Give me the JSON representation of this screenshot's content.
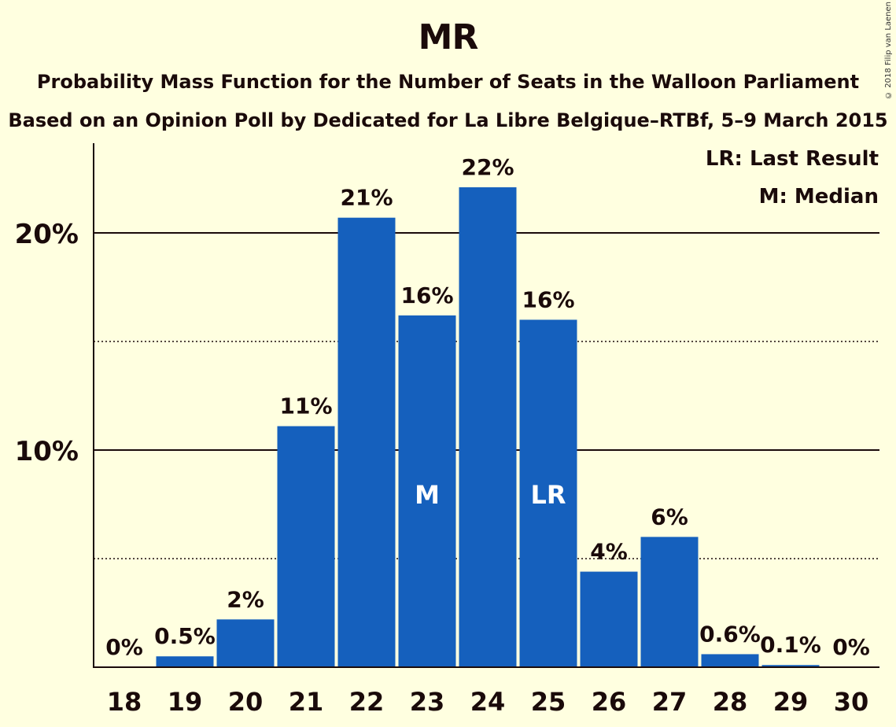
{
  "chart_data": {
    "type": "bar",
    "title": "MR",
    "subtitle": "Probability Mass Function for the Number of Seats in the Walloon Parliament",
    "subtitle2": "Based on an Opinion Poll by Dedicated for La Libre Belgique–RTBf, 5–9 March 2015",
    "categories": [
      "18",
      "19",
      "20",
      "21",
      "22",
      "23",
      "24",
      "25",
      "26",
      "27",
      "28",
      "29",
      "30"
    ],
    "values": [
      0,
      0.5,
      2.2,
      11.1,
      20.7,
      16.2,
      22.1,
      16.0,
      4.4,
      6.0,
      0.6,
      0.1,
      0
    ],
    "value_labels": [
      "0%",
      "0.5%",
      "2%",
      "11%",
      "21%",
      "16%",
      "22%",
      "16%",
      "4%",
      "6%",
      "0.6%",
      "0.1%",
      "0%"
    ],
    "ylim": [
      0,
      24
    ],
    "ytick_labels": [
      {
        "value": 10,
        "label": "10%"
      },
      {
        "value": 20,
        "label": "20%"
      }
    ],
    "minor_gridlines": [
      5,
      15
    ],
    "bar_annotations": [
      {
        "category": "23",
        "text": "M"
      },
      {
        "category": "25",
        "text": "LR"
      }
    ],
    "legend": [
      "LR: Last Result",
      "M: Median"
    ],
    "legend_position": "top-right",
    "bar_color": "#1560BD"
  },
  "copyright": "© 2018 Filip van Laenen"
}
